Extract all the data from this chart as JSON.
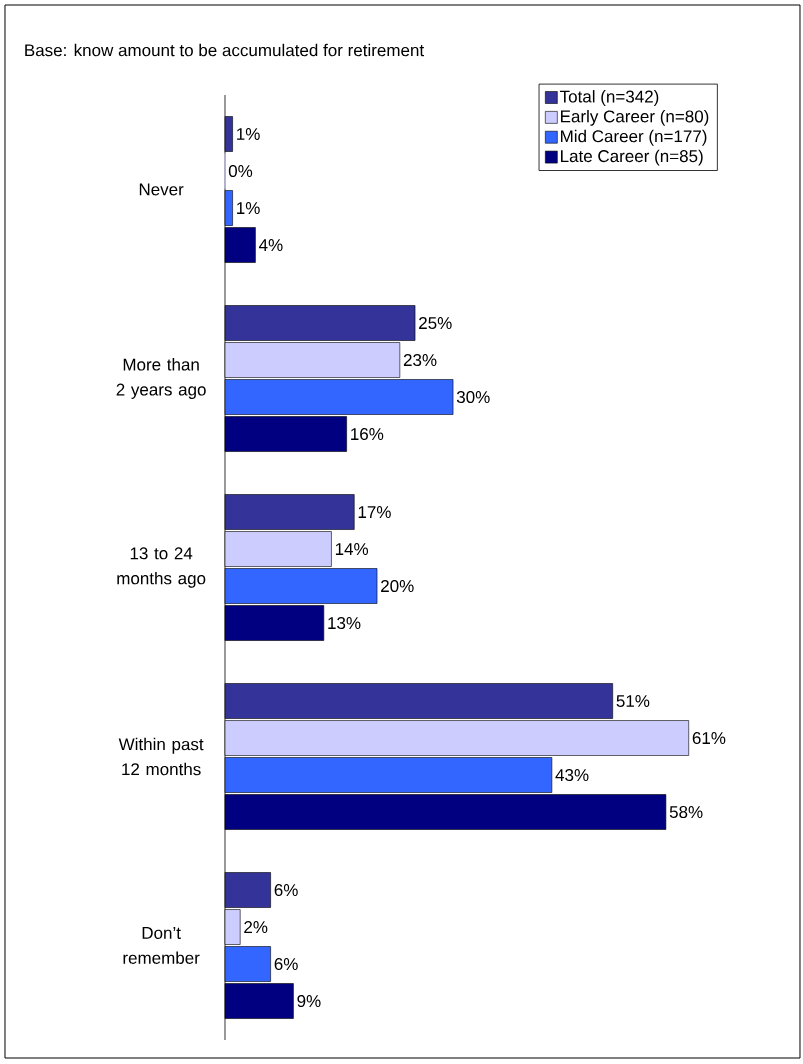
{
  "chart_data": {
    "type": "bar",
    "orientation": "horizontal",
    "title": "Base:  know amount to be accumulated for retirement",
    "categories": [
      "Never",
      "More than 2 years ago",
      "13 to 24 months ago",
      "Within past 12 months",
      "Don’t remember"
    ],
    "series": [
      {
        "name": "Total (n=342)",
        "color": "#333399",
        "values": [
          1,
          25,
          17,
          51,
          6
        ],
        "value_labels": [
          "1%",
          "25%",
          "17%",
          "51%",
          "6%"
        ]
      },
      {
        "name": "Early Career (n=80)",
        "color": "#ccccff",
        "values": [
          0,
          23,
          14,
          61,
          2
        ],
        "value_labels": [
          "0%",
          "23%",
          "14%",
          "61%",
          "2%"
        ]
      },
      {
        "name": "Mid Career (n=177)",
        "color": "#3366ff",
        "values": [
          1,
          30,
          20,
          43,
          6
        ],
        "value_labels": [
          "1%",
          "30%",
          "20%",
          "43%",
          "6%"
        ]
      },
      {
        "name": "Late Career (n=85)",
        "color": "#000080",
        "values": [
          4,
          16,
          13,
          58,
          9
        ],
        "value_labels": [
          "4%",
          "16%",
          "13%",
          "58%",
          "9%"
        ]
      }
    ],
    "legend": "top right"
  }
}
